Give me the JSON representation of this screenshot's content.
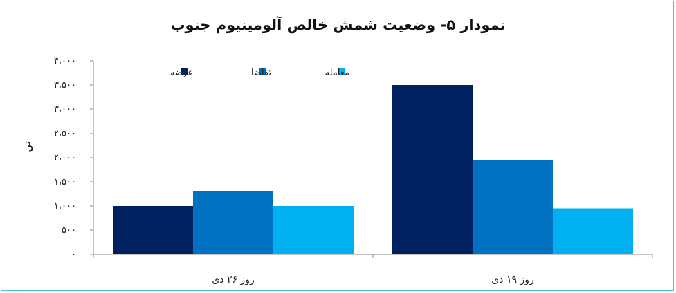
{
  "chart_data": {
    "type": "bar",
    "title": "نمودار ۵- وضعیت شمش خالص  آلومینیوم جنوب",
    "ylabel": "تن",
    "xlabel": "",
    "categories": [
      "روز ۲۶ دی",
      "روز ۱۹ دی"
    ],
    "series": [
      {
        "name": "عرضه",
        "color": "#002060",
        "values": [
          1000,
          3500
        ]
      },
      {
        "name": "تقاضا",
        "color": "#0070c0",
        "values": [
          1300,
          1950
        ]
      },
      {
        "name": "معامله",
        "color": "#00b0f0",
        "values": [
          1000,
          950
        ]
      }
    ],
    "ylim": [
      0,
      4000
    ],
    "yticks": [
      {
        "value": 0,
        "label": "۰"
      },
      {
        "value": 500,
        "label": "۵۰۰"
      },
      {
        "value": 1000,
        "label": "۱،۰۰۰"
      },
      {
        "value": 1500,
        "label": "۱،۵۰۰"
      },
      {
        "value": 2000,
        "label": "۲،۰۰۰"
      },
      {
        "value": 2500,
        "label": "۲،۵۰۰"
      },
      {
        "value": 3000,
        "label": "۳،۰۰۰"
      },
      {
        "value": 3500,
        "label": "۳،۵۰۰"
      },
      {
        "value": 4000,
        "label": "۴،۰۰۰"
      }
    ],
    "grid": false,
    "legend_position": "top"
  }
}
